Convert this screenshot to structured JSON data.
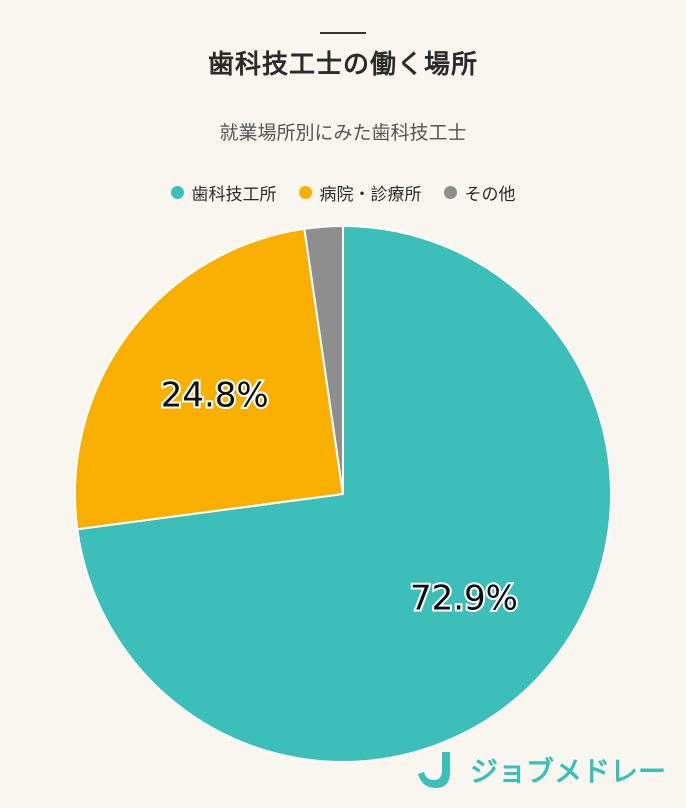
{
  "header": {
    "title": "歯科技工士の働く場所",
    "subtitle": "就業場所別にみた歯科技工士"
  },
  "chart_data": {
    "type": "pie",
    "title": "歯科技工士の働く場所",
    "subtitle": "就業場所別にみた歯科技工士",
    "legend_position": "top",
    "slices": [
      {
        "label": "歯科技工所",
        "value": 72.9,
        "display": "72.9%",
        "color": "#3bbfb8"
      },
      {
        "label": "病院・診療所",
        "value": 24.8,
        "display": "24.8%",
        "color": "#f8af00"
      },
      {
        "label": "その他",
        "value": 2.3,
        "display": "",
        "color": "#8e8e8e"
      }
    ]
  },
  "brand": {
    "logo_text": "ジョブメドレー",
    "color": "#3ac0b8"
  }
}
